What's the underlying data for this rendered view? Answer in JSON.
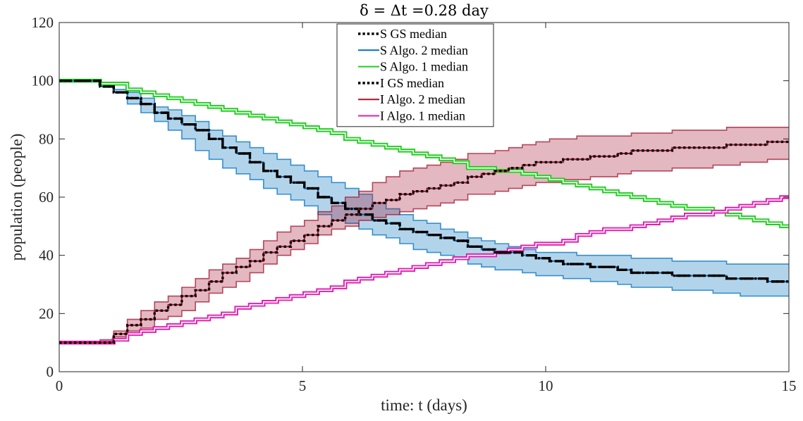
{
  "chart_data": {
    "type": "line",
    "title": "δ = Δt =0.28 day",
    "xlabel": "time: t (days)",
    "ylabel": "population (people)",
    "xlim": [
      0,
      15
    ],
    "ylim": [
      0,
      120
    ],
    "xticks": [
      0,
      5,
      10,
      15
    ],
    "xtick_labels": [
      "0",
      "5",
      "10",
      "15"
    ],
    "yticks": [
      0,
      20,
      40,
      60,
      80,
      100,
      120
    ],
    "ytick_labels": [
      "0",
      "20",
      "40",
      "60",
      "80",
      "100",
      "120"
    ],
    "grid": false,
    "legend_position": "top-center",
    "step": 0.28,
    "bands": [
      {
        "series": "S Algo. 2 median",
        "color": "#0072BD",
        "x": [
          0,
          0.6,
          1,
          1.5,
          2,
          2.5,
          3,
          3.5,
          4,
          4.5,
          5,
          5.5,
          6,
          6.5,
          7,
          7.5,
          8,
          8.5,
          9,
          9.5,
          10,
          11,
          12,
          13,
          14,
          15
        ],
        "lower": [
          100,
          100,
          97,
          91,
          86,
          80,
          74,
          69,
          65,
          61,
          57,
          53,
          50,
          47,
          44,
          41,
          39,
          37,
          35,
          34,
          33,
          31,
          29,
          28,
          26,
          26
        ],
        "upper": [
          100,
          100,
          98,
          95,
          91,
          88,
          84,
          80,
          76,
          73,
          69,
          66,
          62,
          58,
          54,
          51,
          48,
          46,
          44,
          42,
          41,
          40,
          39,
          38,
          37,
          37
        ]
      },
      {
        "series": "I Algo. 2 median",
        "color": "#A2142F",
        "x": [
          0,
          0.8,
          1,
          1.5,
          2,
          2.5,
          3,
          3.5,
          4,
          4.5,
          5,
          5.5,
          6,
          6.5,
          7,
          7.5,
          8,
          8.5,
          9,
          9.5,
          10,
          11,
          12,
          13,
          14,
          15
        ],
        "lower": [
          10,
          10,
          12,
          14,
          18,
          21,
          26,
          30,
          35,
          40,
          44,
          48,
          51,
          53,
          55,
          57,
          59,
          61,
          62,
          64,
          65,
          67,
          69,
          70,
          72,
          73
        ],
        "upper": [
          10,
          10,
          13,
          19,
          24,
          29,
          34,
          38,
          43,
          48,
          52,
          56,
          61,
          65,
          69,
          71,
          73,
          75,
          76,
          78,
          80,
          81,
          82,
          83,
          84,
          84
        ]
      }
    ],
    "series": [
      {
        "name": "S GS median",
        "color": "#000000",
        "style": "dotted",
        "x": [
          0,
          0.6,
          1,
          1.5,
          2,
          2.5,
          3,
          3.5,
          4,
          4.5,
          5,
          5.5,
          6,
          6.5,
          7,
          7.5,
          8,
          8.5,
          9,
          9.5,
          10,
          11,
          12,
          13,
          14,
          15
        ],
        "y": [
          100,
          100,
          97,
          93,
          89,
          85,
          81,
          76,
          71,
          67,
          63,
          59,
          55,
          52,
          49,
          47,
          45,
          43,
          41,
          40,
          38,
          36,
          34,
          33,
          32,
          31
        ]
      },
      {
        "name": "S Algo. 2 median",
        "color": "#0072BD",
        "style": "dashed",
        "x": [
          0,
          0.6,
          1,
          1.5,
          2,
          2.5,
          3,
          3.5,
          4,
          4.5,
          5,
          5.5,
          6,
          6.5,
          7,
          7.5,
          8,
          8.5,
          9,
          9.5,
          10,
          11,
          12,
          13,
          14,
          15
        ],
        "y": [
          100,
          100,
          97,
          93,
          89,
          85,
          81,
          76,
          71,
          67,
          63,
          59,
          55,
          52,
          49,
          47,
          45,
          43,
          41,
          40,
          38,
          36,
          34,
          33,
          32,
          31
        ]
      },
      {
        "name": "S Algo. 1 median",
        "color": "#1FCF1F",
        "style": "double",
        "x": [
          0,
          0.6,
          1,
          1.5,
          2,
          2.5,
          3,
          3.5,
          4,
          4.5,
          5,
          5.5,
          6,
          6.5,
          7,
          7.5,
          8,
          8.5,
          9,
          9.5,
          10,
          11,
          12,
          13,
          14,
          15
        ],
        "y": [
          100,
          100,
          99,
          97,
          95,
          93,
          91,
          89,
          88,
          86,
          84,
          82,
          80,
          78,
          76,
          74,
          72,
          70,
          69,
          68,
          66,
          63,
          59,
          56,
          53,
          50
        ]
      },
      {
        "name": "I GS median",
        "color": "#000000",
        "style": "dotted",
        "x": [
          0,
          0.8,
          1,
          1.5,
          2,
          2.5,
          3,
          3.5,
          4,
          4.5,
          5,
          5.5,
          6,
          6.5,
          7,
          7.5,
          8,
          8.5,
          9,
          9.5,
          10,
          11,
          12,
          13,
          14,
          15
        ],
        "y": [
          10,
          10,
          12,
          17,
          21,
          26,
          30,
          35,
          39,
          43,
          47,
          51,
          55,
          58,
          61,
          63,
          65,
          67,
          69,
          71,
          72,
          74,
          76,
          77,
          78,
          79
        ]
      },
      {
        "name": "I Algo. 2 median",
        "color": "#A2142F",
        "style": "solid",
        "x": [
          0,
          0.8,
          1,
          1.5,
          2,
          2.5,
          3,
          3.5,
          4,
          4.5,
          5,
          5.5,
          6,
          6.5,
          7,
          7.5,
          8,
          8.5,
          9,
          9.5,
          10,
          11,
          12,
          13,
          14,
          15
        ],
        "y": [
          10,
          10,
          12,
          17,
          21,
          26,
          30,
          35,
          39,
          43,
          47,
          51,
          55,
          58,
          61,
          63,
          65,
          67,
          69,
          71,
          72,
          74,
          76,
          77,
          78,
          79
        ]
      },
      {
        "name": "I Algo. 1 median",
        "color": "#E020B0",
        "style": "double",
        "x": [
          0,
          0.8,
          1,
          1.5,
          2,
          2.5,
          3,
          3.5,
          4,
          4.5,
          5,
          5.5,
          6,
          6.5,
          7,
          7.5,
          8,
          8.5,
          9,
          9.5,
          10,
          11,
          12,
          13,
          14,
          15
        ],
        "y": [
          10,
          10,
          11,
          13,
          15,
          17,
          19,
          21,
          23,
          25,
          27,
          29,
          31,
          33,
          35,
          37,
          39,
          40,
          41,
          43,
          44,
          48,
          51,
          54,
          57,
          60
        ]
      }
    ]
  }
}
